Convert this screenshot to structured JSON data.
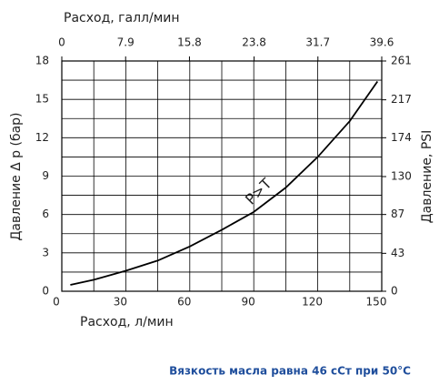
{
  "chart_data": {
    "type": "line",
    "x_label": "Расход, л/мин",
    "x2_label": "Расход, галл/мин",
    "y_label": "Давление Δ p (бар)",
    "y2_label": "Давление, PSI",
    "annotation": "P>T",
    "footnote": "Вязкость масла равна 46 сСт при 50°C",
    "xlim": [
      0,
      150
    ],
    "xticks": [
      0,
      30,
      60,
      90,
      120,
      150
    ],
    "x2lim": [
      0,
      39.6
    ],
    "x2ticks": [
      0,
      7.9,
      15.8,
      23.8,
      31.7,
      39.6
    ],
    "ylim": [
      0,
      18
    ],
    "yticks": [
      0,
      3,
      6,
      9,
      12,
      15,
      18
    ],
    "y2lim": [
      0,
      261
    ],
    "y2ticks": [
      0,
      43,
      87,
      130,
      174,
      217,
      261
    ],
    "grid": true,
    "series": [
      {
        "color": "#000000",
        "x": [
          4,
          15,
          30,
          45,
          60,
          75,
          90,
          105,
          120,
          135,
          148
        ],
        "values": [
          0.5,
          0.9,
          1.6,
          2.4,
          3.5,
          4.8,
          6.2,
          8.1,
          10.5,
          13.3,
          16.4
        ]
      }
    ]
  }
}
